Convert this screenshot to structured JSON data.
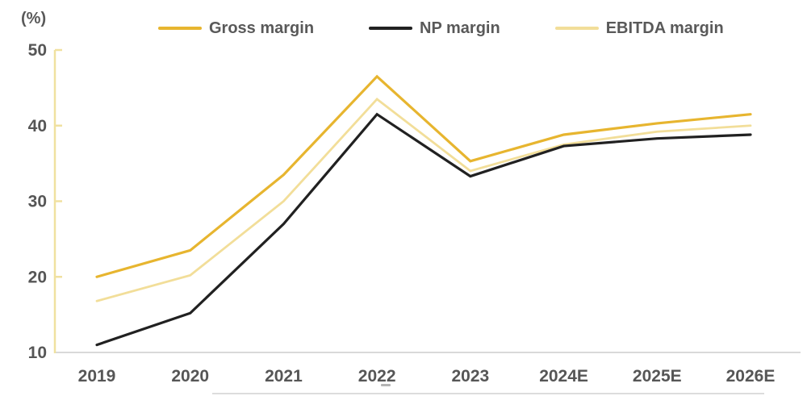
{
  "chart_data": {
    "type": "line",
    "title": "",
    "ylabel": "(%)",
    "xlabel": "",
    "categories": [
      "2019",
      "2020",
      "2021",
      "2022",
      "2023",
      "2024E",
      "2025E",
      "2026E"
    ],
    "series": [
      {
        "name": "Gross margin",
        "color": "#e7b52f",
        "values": [
          20.0,
          23.5,
          33.5,
          46.5,
          35.3,
          38.8,
          40.3,
          41.5
        ]
      },
      {
        "name": "NP margin",
        "color": "#212121",
        "values": [
          11.0,
          15.2,
          27.0,
          41.5,
          33.3,
          37.3,
          38.3,
          38.8
        ]
      },
      {
        "name": "EBITDA margin",
        "color": "#f2de99",
        "values": [
          16.8,
          20.2,
          30.0,
          43.5,
          34.0,
          37.5,
          39.2,
          40.0
        ]
      }
    ],
    "ylim": [
      10,
      50
    ],
    "yticks": [
      50,
      40,
      30,
      20,
      10
    ],
    "legend_position": "top",
    "grid": false,
    "axis_color": "#f0e1a0",
    "baseline_color": "#d9d9d9",
    "text_color": "#595959"
  }
}
